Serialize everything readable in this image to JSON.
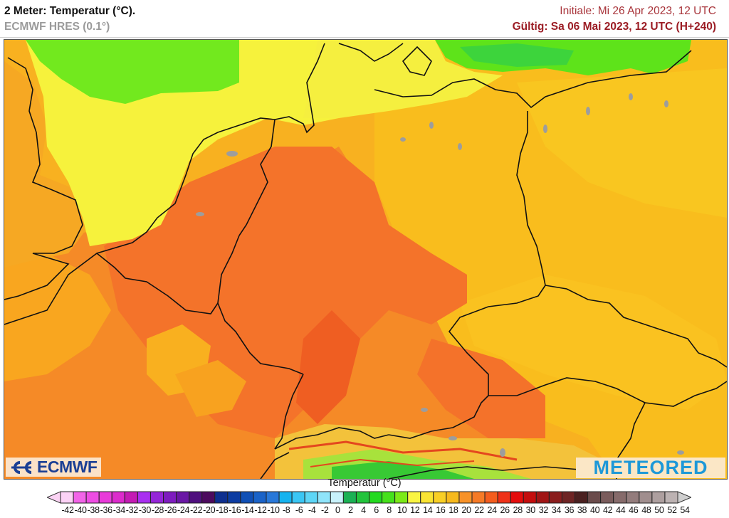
{
  "header": {
    "title": "2 Meter: Temperatur (°C).",
    "model": "ECMWF HRES (0.1°)",
    "init": "Initiale: Mi 26 Apr 2023, 12 UTC",
    "valid": "Gültig: Sa 06 Mai 2023, 12 UTC (H+240)"
  },
  "map": {
    "region": "Central Europe (Germany, Benelux, Czechia, Alps)",
    "variable": "2m temperature",
    "unit": "°C",
    "dominant_ranges": [
      {
        "area": "North Sea / Baltic Sea",
        "range": "8-12",
        "color": "#6ee81e"
      },
      {
        "area": "Coastal / Denmark",
        "range": "12-16",
        "color": "#f5f23a"
      },
      {
        "area": "Poland / Czechia",
        "range": "18-22",
        "color": "#f9b51c"
      },
      {
        "area": "Benelux / Western & Southern Germany / France",
        "range": "22-26",
        "color": "#f4762a"
      },
      {
        "area": "Alps (high terrain)",
        "range": "0-14",
        "color": "#38c934"
      }
    ]
  },
  "logos": {
    "left": "ECMWF",
    "right": "METEORED"
  },
  "colorbar": {
    "title": "Temperatur (°C)",
    "ticks": [
      "-42",
      "-40",
      "-38",
      "-36",
      "-34",
      "-32",
      "-30",
      "-28",
      "-26",
      "-24",
      "-22",
      "-20",
      "-18",
      "-16",
      "-14",
      "-12",
      "-10",
      "-8",
      "-6",
      "-4",
      "-2",
      "0",
      "2",
      "4",
      "6",
      "8",
      "10",
      "12",
      "14",
      "16",
      "18",
      "20",
      "22",
      "24",
      "26",
      "28",
      "30",
      "32",
      "34",
      "36",
      "38",
      "40",
      "42",
      "44",
      "46",
      "48",
      "50",
      "52",
      "54"
    ],
    "under_color": "#fbd3f4",
    "over_color": "#cfcfcf",
    "colors": [
      "#fcd2f6",
      "#f264e8",
      "#ee4ce3",
      "#e83ad9",
      "#dc2bcc",
      "#c41bb4",
      "#a92ff0",
      "#9526d8",
      "#7e1cbf",
      "#6a17a5",
      "#4f0f7e",
      "#4c0a5e",
      "#0e2f8f",
      "#0c3ca2",
      "#1050b6",
      "#1a63c8",
      "#2878d9",
      "#15b3ef",
      "#3ac6f4",
      "#5dd6f7",
      "#8fe4fa",
      "#c8f2fb",
      "#1bb154",
      "#22c43c",
      "#22d91f",
      "#45e11b",
      "#7bea17",
      "#f9f542",
      "#f9e433",
      "#f8cf25",
      "#f7b91c",
      "#f89228",
      "#f67a26",
      "#f45d1e",
      "#ef3118",
      "#e40c0c",
      "#c40d0d",
      "#a11515",
      "#8a1d1d",
      "#6e2424",
      "#4a2020",
      "#6a4b4b",
      "#7a5c5c",
      "#866b6b",
      "#937c7c",
      "#a08e8e",
      "#ad9f9f",
      "#bcb2b2"
    ]
  }
}
